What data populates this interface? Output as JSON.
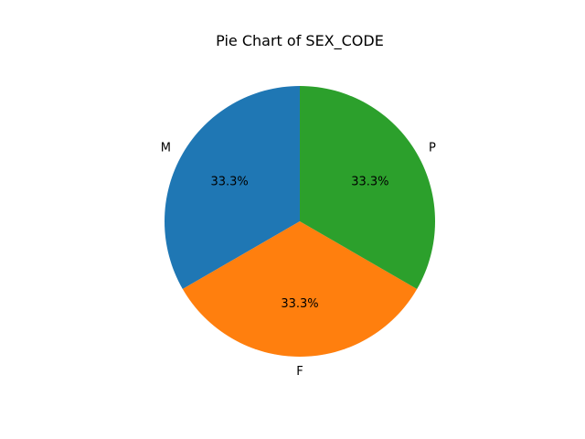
{
  "chart_data": {
    "type": "pie",
    "title": "Pie Chart of SEX_CODE",
    "categories": [
      "M",
      "F",
      "P"
    ],
    "values": [
      33.3,
      33.3,
      33.3
    ],
    "percent_labels": [
      "33.3%",
      "33.3%",
      "33.3%"
    ],
    "colors": [
      "#1f77b4",
      "#ff7f0e",
      "#2ca02c"
    ],
    "start_angle_deg": 90,
    "direction": "counterclockwise"
  }
}
